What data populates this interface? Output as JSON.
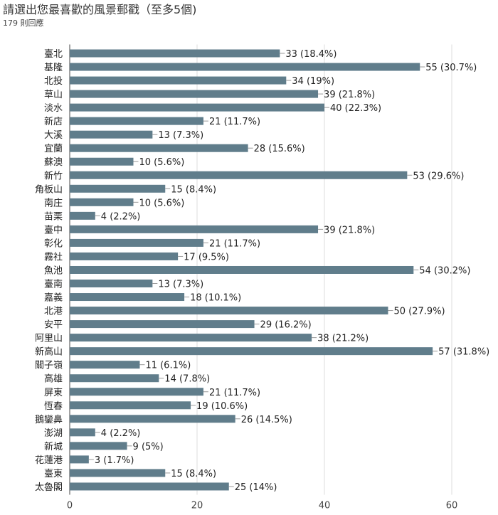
{
  "title": "請選出您最喜歡的風景郵戳（至多5個)",
  "subtitle": "179 則回應",
  "chart_data": {
    "type": "bar",
    "orientation": "horizontal",
    "categories": [
      "臺北",
      "基隆",
      "北投",
      "草山",
      "淡水",
      "新店",
      "大溪",
      "宜蘭",
      "蘇澳",
      "新竹",
      "角板山",
      "南庄",
      "苗栗",
      "臺中",
      "彰化",
      "霧社",
      "魚池",
      "臺南",
      "嘉義",
      "北港",
      "安平",
      "阿里山",
      "新高山",
      "關子嶺",
      "高雄",
      "屏東",
      "恆春",
      "鵝鑾鼻",
      "澎湖",
      "新城",
      "花蓮港",
      "臺東",
      "太魯閣"
    ],
    "values": [
      33,
      55,
      34,
      39,
      40,
      21,
      13,
      28,
      10,
      53,
      15,
      10,
      4,
      39,
      21,
      17,
      54,
      13,
      18,
      50,
      29,
      38,
      57,
      11,
      14,
      21,
      19,
      26,
      4,
      9,
      3,
      15,
      25
    ],
    "labels": [
      "33 (18.4%)",
      "55 (30.7%)",
      "34 (19%)",
      "39 (21.8%)",
      "40 (22.3%)",
      "21 (11.7%)",
      "13 (7.3%)",
      "28 (15.6%)",
      "10 (5.6%)",
      "53 (29.6%)",
      "15 (8.4%)",
      "10 (5.6%)",
      "4 (2.2%)",
      "39 (21.8%)",
      "21 (11.7%)",
      "17 (9.5%)",
      "54 (30.2%)",
      "13 (7.3%)",
      "18 (10.1%)",
      "50 (27.9%)",
      "29 (16.2%)",
      "38 (21.2%)",
      "57 (31.8%)",
      "11 (6.1%)",
      "14 (7.8%)",
      "21 (11.7%)",
      "19 (10.6%)",
      "26 (14.5%)",
      "4 (2.2%)",
      "9 (5%)",
      "3 (1.7%)",
      "15 (8.4%)",
      "25 (14%)"
    ],
    "xlim": [
      0,
      60
    ],
    "xticks": [
      0,
      20,
      40,
      60
    ],
    "grid": true,
    "bar_color": "#607d8b"
  }
}
